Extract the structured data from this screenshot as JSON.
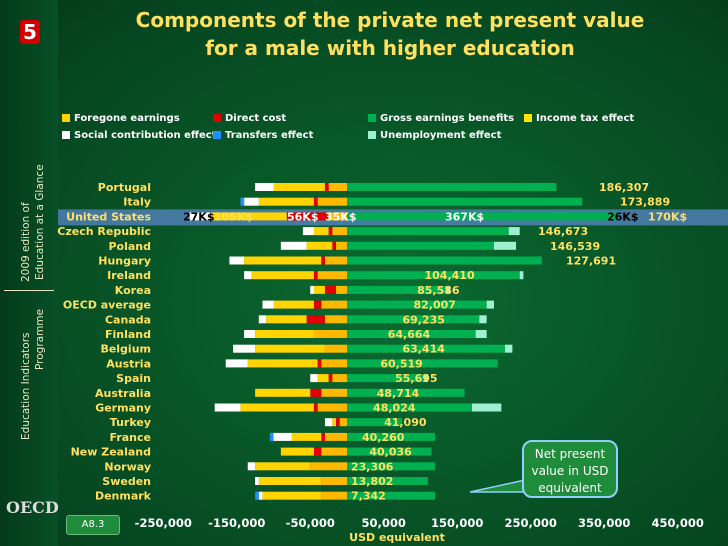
{
  "badge": "5",
  "title_line1": "Components of the private net present value",
  "title_line2": "for a male with higher education",
  "sidebar": {
    "line1": "Education Indicators",
    "line2": "Programme",
    "line3": "2009 edition of",
    "line4": "Education at a Glance",
    "logo": "OECD"
  },
  "footer_badge": "A8.3",
  "callout": "Net present value in USD equivalent",
  "colors": {
    "foregone": "#ffd400",
    "direct": "#e00000",
    "gross": "#00b050",
    "income_tax": "#ffe600",
    "social": "#ffffff",
    "transfers": "#1e90ff",
    "unemployment": "#9ff0d0",
    "label": "#ffe060"
  },
  "chart_data": {
    "type": "bar",
    "title": "Components of the private net present value for a male with higher education",
    "xlabel": "USD equivalent",
    "x_ticks": [
      "-250,000",
      "-150,000",
      "-50,000",
      "50,000",
      "150,000",
      "250,000",
      "350,000",
      "450,000"
    ],
    "xlim": [
      -265000,
      475000
    ],
    "legend": [
      {
        "name": "Foregone earnings",
        "key": "foregone"
      },
      {
        "name": "Direct cost",
        "key": "direct"
      },
      {
        "name": "Gross earnings benefits",
        "key": "gross"
      },
      {
        "name": "Income tax effect",
        "key": "income_tax"
      },
      {
        "name": "Social contribution effect",
        "key": "social"
      },
      {
        "name": "Transfers effect",
        "key": "transfers"
      },
      {
        "name": "Unemployment effect",
        "key": "unemployment"
      }
    ],
    "categories": [
      "Portugal",
      "Italy",
      "United States",
      "Czech Republic",
      "Poland",
      "Hungary",
      "Ireland",
      "Korea",
      "OECD average",
      "Canada",
      "Finland",
      "Belgium",
      "Austria",
      "Spain",
      "Australia",
      "Germany",
      "Turkey",
      "France",
      "New Zealand",
      "Norway",
      "Sweden",
      "Denmark"
    ],
    "net_labels": [
      "186,307",
      "173,889",
      "",
      "146,673",
      "146,539",
      "127,691",
      "104,410",
      "85,586",
      "82,007",
      "69,235",
      "64,664",
      "63,414",
      "60,519",
      "55,695",
      "48,714",
      "48,024",
      "41,090",
      "40,260",
      "40,036",
      "23,306",
      "13,802",
      "7,342"
    ],
    "us_annotations": [
      "27K$",
      "105K$",
      "56K$",
      "35K$",
      "367K$",
      "26K$",
      "170K$"
    ],
    "positive": {
      "gross": [
        285000,
        320000,
        367000,
        220000,
        200000,
        265000,
        235000,
        135000,
        190000,
        180000,
        175000,
        215000,
        205000,
        105000,
        160000,
        170000,
        75000,
        120000,
        115000,
        120000,
        110000,
        120000
      ],
      "unemployment": [
        0,
        0,
        0,
        15000,
        30000,
        0,
        5000,
        5000,
        10000,
        10000,
        15000,
        10000,
        0,
        5000,
        0,
        40000,
        0,
        0,
        0,
        0,
        0,
        0
      ],
      "transfers": [
        0,
        0,
        0,
        0,
        0,
        0,
        0,
        0,
        0,
        0,
        0,
        0,
        0,
        0,
        0,
        0,
        0,
        0,
        0,
        0,
        0,
        0
      ]
    },
    "negative": {
      "income_tax": [
        25000,
        40000,
        26000,
        20000,
        15000,
        30000,
        40000,
        15000,
        35000,
        30000,
        45000,
        30000,
        35000,
        20000,
        35000,
        40000,
        10000,
        30000,
        35000,
        50000,
        35000,
        35000
      ],
      "direct": [
        5000,
        5000,
        56000,
        5000,
        5000,
        5000,
        5000,
        15000,
        10000,
        25000,
        0,
        0,
        5000,
        5000,
        15000,
        5000,
        5000,
        5000,
        10000,
        0,
        0,
        0
      ],
      "foregone": [
        70000,
        75000,
        105000,
        20000,
        35000,
        105000,
        85000,
        15000,
        55000,
        55000,
        80000,
        95000,
        95000,
        15000,
        75000,
        100000,
        5000,
        40000,
        45000,
        75000,
        85000,
        80000
      ],
      "social": [
        25000,
        20000,
        27000,
        15000,
        35000,
        20000,
        10000,
        5000,
        15000,
        10000,
        15000,
        30000,
        30000,
        10000,
        0,
        35000,
        10000,
        25000,
        0,
        10000,
        5000,
        5000
      ],
      "transfers": [
        0,
        5000,
        0,
        0,
        0,
        0,
        0,
        0,
        0,
        0,
        0,
        0,
        0,
        0,
        0,
        0,
        0,
        5000,
        0,
        0,
        0,
        5000
      ]
    }
  }
}
